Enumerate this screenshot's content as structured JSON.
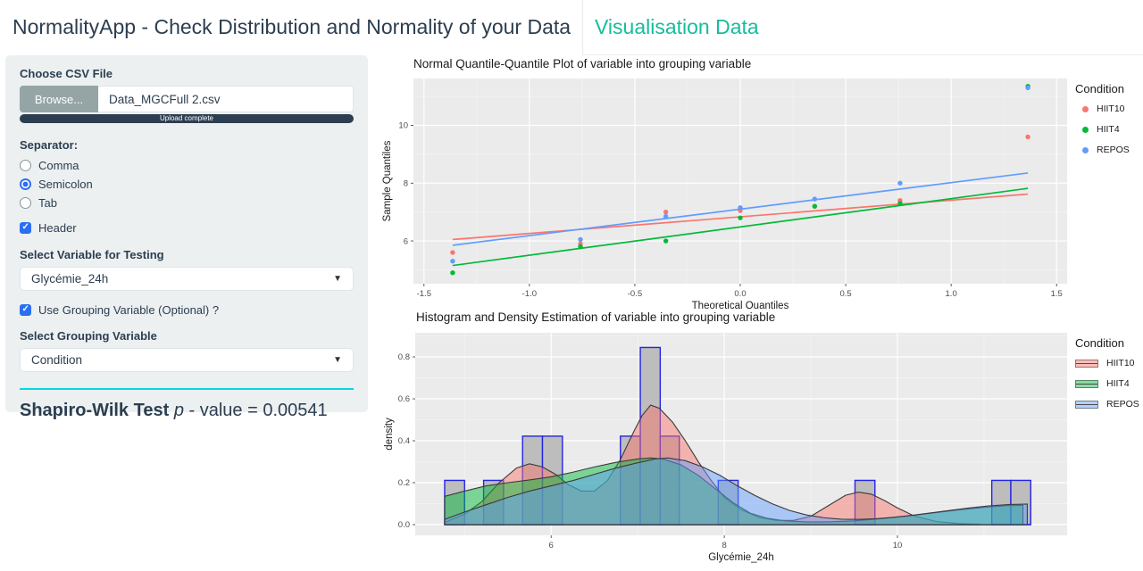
{
  "header": {
    "title": "NormalityApp - Check Distribution and Normality of your Data",
    "tab": "Visualisation Data"
  },
  "sidebar": {
    "file_input": {
      "label": "Choose CSV File",
      "browse_label": "Browse...",
      "filename": "Data_MGCFull 2.csv",
      "progress_text": "Upload complete"
    },
    "separator": {
      "label": "Separator:",
      "options": [
        {
          "label": "Comma",
          "selected": false
        },
        {
          "label": "Semicolon",
          "selected": true
        },
        {
          "label": "Tab",
          "selected": false
        }
      ]
    },
    "header_checkbox": {
      "label": "Header",
      "checked": true
    },
    "variable_select": {
      "label": "Select Variable for Testing",
      "value": "Glycémie_24h"
    },
    "grouping_checkbox": {
      "label": "Use Grouping Variable (Optional) ?",
      "checked": true
    },
    "grouping_select": {
      "label": "Select Grouping Variable",
      "value": "Condition"
    },
    "result": {
      "bold": "Shapiro-Wilk Test ",
      "p": "p",
      "rest": " - value = 0.00541"
    }
  },
  "colors": {
    "navy": "#2c3e50",
    "accent_teal": "#18bc9c",
    "cyan_rule": "#00dbe4",
    "panel_bg": "#ebebeb",
    "hiit10": "#F8766D",
    "hiit4": "#00BA38",
    "repos": "#619CFF",
    "bar_fill": "#bdbdbd",
    "bar_stroke": "#2424e6"
  },
  "chart_data": [
    {
      "type": "scatter",
      "title": "Normal Quantile-Quantile Plot of variable into grouping variable",
      "xlabel": "Theoretical Quantiles",
      "ylabel": "Sample Quantiles",
      "xlim": [
        -1.55,
        1.55
      ],
      "ylim": [
        4.52,
        11.62
      ],
      "xticks": [
        -1.5,
        -1.0,
        -0.5,
        0.0,
        0.5,
        1.0,
        1.5
      ],
      "xtick_labels": [
        "-1.5",
        "-1.0",
        "-0.5",
        "0.0",
        "0.5",
        "1.0",
        "1.5"
      ],
      "yticks": [
        6,
        8,
        10
      ],
      "ytick_labels": [
        "6",
        "8",
        "10"
      ],
      "xminor": [
        -1.25,
        -0.75,
        -0.25,
        0.25,
        0.75,
        1.25
      ],
      "yminor": [
        5,
        7,
        9,
        11
      ],
      "legend_title": "Condition",
      "legend_position": "right",
      "grid": true,
      "theoretical_quantiles": [
        -1.364,
        -0.758,
        -0.353,
        0,
        0.353,
        0.758,
        1.364
      ],
      "series": [
        {
          "name": "HIIT10",
          "color": "#F8766D",
          "sample_quantiles": [
            5.6,
            5.9,
            7.0,
            7.05,
            7.2,
            7.4,
            9.6
          ],
          "qq_line": {
            "x": [
              -1.364,
              1.364
            ],
            "y": [
              6.05,
              7.62
            ]
          }
        },
        {
          "name": "HIIT4",
          "color": "#00BA38",
          "sample_quantiles": [
            4.9,
            5.8,
            6.0,
            6.8,
            7.2,
            7.3,
            11.35
          ],
          "qq_line": {
            "x": [
              -1.364,
              1.364
            ],
            "y": [
              5.15,
              7.82
            ]
          }
        },
        {
          "name": "REPOS",
          "color": "#619CFF",
          "sample_quantiles": [
            5.3,
            6.05,
            6.85,
            7.15,
            7.45,
            8.0,
            11.3
          ],
          "qq_line": {
            "x": [
              -1.364,
              1.364
            ],
            "y": [
              5.85,
              8.35
            ]
          }
        }
      ]
    },
    {
      "type": "histogram_density",
      "title": "Histogram and Density Estimation of variable into grouping variable",
      "xlabel": "Glycémie_24h",
      "ylabel": "density",
      "xlim": [
        4.43,
        11.96
      ],
      "ylim": [
        -0.051,
        0.915
      ],
      "xticks": [
        6,
        8,
        10
      ],
      "xtick_labels": [
        "6",
        "8",
        "10"
      ],
      "yticks": [
        0.0,
        0.2,
        0.4,
        0.6,
        0.8
      ],
      "ytick_labels": [
        "0.0",
        "0.2",
        "0.4",
        "0.6",
        "0.8"
      ],
      "xminor": [
        5,
        7,
        9,
        11
      ],
      "yminor": [
        0.1,
        0.3,
        0.5,
        0.7,
        0.9
      ],
      "legend_title": "Condition",
      "legend_position": "right",
      "grid": true,
      "histogram": {
        "fill": "#bdbdbd",
        "stroke": "#2424e6",
        "baseline": [
          4.77,
          11.54
        ],
        "bars": [
          [
            4.77,
            5.0,
            0.211
          ],
          [
            5.22,
            5.45,
            0.211
          ],
          [
            5.67,
            5.9,
            0.422
          ],
          [
            5.9,
            6.13,
            0.422
          ],
          [
            6.8,
            7.03,
            0.422
          ],
          [
            7.03,
            7.26,
            0.845
          ],
          [
            7.26,
            7.48,
            0.422
          ],
          [
            7.93,
            8.16,
            0.211
          ],
          [
            9.51,
            9.74,
            0.211
          ],
          [
            11.09,
            11.31,
            0.211
          ],
          [
            11.31,
            11.54,
            0.211
          ]
        ]
      },
      "densities": [
        {
          "name": "HIIT10",
          "color": "#F8766D",
          "points": [
            [
              4.77,
              0.01
            ],
            [
              5.0,
              0.05
            ],
            [
              5.2,
              0.11
            ],
            [
              5.4,
              0.2
            ],
            [
              5.6,
              0.27
            ],
            [
              5.75,
              0.29
            ],
            [
              5.9,
              0.275
            ],
            [
              6.05,
              0.24
            ],
            [
              6.2,
              0.19
            ],
            [
              6.35,
              0.16
            ],
            [
              6.5,
              0.16
            ],
            [
              6.65,
              0.21
            ],
            [
              6.8,
              0.31
            ],
            [
              6.95,
              0.44
            ],
            [
              7.05,
              0.52
            ],
            [
              7.15,
              0.57
            ],
            [
              7.25,
              0.555
            ],
            [
              7.4,
              0.49
            ],
            [
              7.55,
              0.4
            ],
            [
              7.7,
              0.3
            ],
            [
              7.85,
              0.21
            ],
            [
              8.0,
              0.13
            ],
            [
              8.2,
              0.07
            ],
            [
              8.4,
              0.035
            ],
            [
              8.6,
              0.02
            ],
            [
              8.8,
              0.02
            ],
            [
              9.0,
              0.04
            ],
            [
              9.2,
              0.09
            ],
            [
              9.4,
              0.14
            ],
            [
              9.55,
              0.155
            ],
            [
              9.7,
              0.145
            ],
            [
              9.85,
              0.115
            ],
            [
              10.0,
              0.08
            ],
            [
              10.2,
              0.04
            ],
            [
              10.45,
              0.015
            ],
            [
              10.7,
              0.005
            ],
            [
              10.95,
              0.002
            ]
          ]
        },
        {
          "name": "HIIT4",
          "color": "#00BA38",
          "points": [
            [
              4.77,
              0.135
            ],
            [
              5.0,
              0.16
            ],
            [
              5.25,
              0.185
            ],
            [
              5.5,
              0.2
            ],
            [
              5.75,
              0.213
            ],
            [
              6.0,
              0.228
            ],
            [
              6.25,
              0.25
            ],
            [
              6.5,
              0.275
            ],
            [
              6.75,
              0.297
            ],
            [
              7.0,
              0.313
            ],
            [
              7.15,
              0.318
            ],
            [
              7.3,
              0.312
            ],
            [
              7.5,
              0.285
            ],
            [
              7.7,
              0.235
            ],
            [
              7.9,
              0.17
            ],
            [
              8.1,
              0.105
            ],
            [
              8.3,
              0.055
            ],
            [
              8.5,
              0.03
            ],
            [
              8.7,
              0.018
            ],
            [
              8.95,
              0.013
            ],
            [
              9.2,
              0.013
            ],
            [
              9.5,
              0.018
            ],
            [
              9.8,
              0.028
            ],
            [
              10.1,
              0.04
            ],
            [
              10.4,
              0.055
            ],
            [
              10.7,
              0.07
            ],
            [
              11.0,
              0.082
            ],
            [
              11.25,
              0.09
            ],
            [
              11.45,
              0.092
            ]
          ]
        },
        {
          "name": "REPOS",
          "color": "#619CFF",
          "points": [
            [
              4.77,
              0.025
            ],
            [
              5.0,
              0.06
            ],
            [
              5.25,
              0.095
            ],
            [
              5.5,
              0.13
            ],
            [
              5.75,
              0.16
            ],
            [
              6.0,
              0.185
            ],
            [
              6.25,
              0.21
            ],
            [
              6.5,
              0.24
            ],
            [
              6.75,
              0.27
            ],
            [
              7.0,
              0.295
            ],
            [
              7.2,
              0.313
            ],
            [
              7.35,
              0.318
            ],
            [
              7.55,
              0.305
            ],
            [
              7.75,
              0.275
            ],
            [
              7.95,
              0.235
            ],
            [
              8.15,
              0.185
            ],
            [
              8.35,
              0.14
            ],
            [
              8.55,
              0.1
            ],
            [
              8.75,
              0.068
            ],
            [
              8.95,
              0.046
            ],
            [
              9.15,
              0.033
            ],
            [
              9.35,
              0.026
            ],
            [
              9.55,
              0.025
            ],
            [
              9.75,
              0.028
            ],
            [
              9.95,
              0.035
            ],
            [
              10.2,
              0.046
            ],
            [
              10.5,
              0.062
            ],
            [
              10.8,
              0.078
            ],
            [
              11.05,
              0.089
            ],
            [
              11.3,
              0.096
            ],
            [
              11.5,
              0.098
            ]
          ]
        }
      ]
    }
  ]
}
